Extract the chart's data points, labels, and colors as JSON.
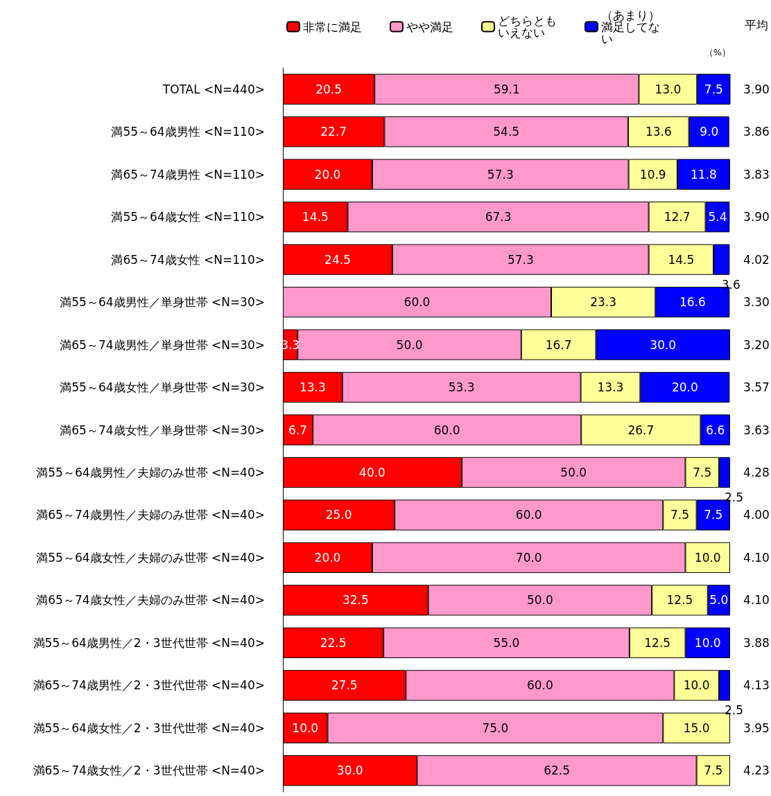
{
  "chart_data": {
    "type": "bar",
    "orientation": "horizontal",
    "stacked": true,
    "categories": [
      "TOTAL <N=440>",
      "満55～64歳男性 <N=110>",
      "満65～74歳男性 <N=110>",
      "満55～64歳女性 <N=110>",
      "満65～74歳女性 <N=110>",
      "満55～64歳男性／単身世帯 <N=30>",
      "満65～74歳男性／単身世帯 <N=30>",
      "満55～64歳女性／単身世帯 <N=30>",
      "満65～74歳女性／単身世帯 <N=30>",
      "満55～64歳男性／夫婦のみ世帯 <N=40>",
      "満65～74歳男性／夫婦のみ世帯 <N=40>",
      "満55～64歳女性／夫婦のみ世帯 <N=40>",
      "満65～74歳女性／夫婦のみ世帯 <N=40>",
      "満55～64歳男性／2・3世代世帯 <N=40>",
      "満65～74歳男性／2・3世代世帯 <N=40>",
      "満55～64歳女性／2・3世代世帯 <N=40>",
      "満65～74歳女性／2・3世代世帯 <N=40>"
    ],
    "series": [
      {
        "name": "非常に満足",
        "color": "#ff0000",
        "values": [
          20.5,
          22.7,
          20.0,
          14.5,
          24.5,
          null,
          3.3,
          13.3,
          6.7,
          40.0,
          25.0,
          20.0,
          32.5,
          22.5,
          27.5,
          10.0,
          30.0
        ],
        "value_labels": [
          "20.5",
          "22.7",
          "20.0",
          "14.5",
          "24.5",
          null,
          "3.3",
          "13.3",
          "6.7",
          "40.0",
          "25.0",
          "20.0",
          "32.5",
          "22.5",
          "27.5",
          "10.0",
          "30.0"
        ]
      },
      {
        "name": "やや満足",
        "color": "#ff99cc",
        "values": [
          59.1,
          54.5,
          57.3,
          67.3,
          57.3,
          60.0,
          50.0,
          53.3,
          60.0,
          50.0,
          60.0,
          70.0,
          50.0,
          55.0,
          60.0,
          75.0,
          62.5
        ],
        "value_labels": [
          "59.1",
          "54.5",
          "57.3",
          "67.3",
          "57.3",
          "60.0",
          "50.0",
          "53.3",
          "60.0",
          "50.0",
          "60.0",
          "70.0",
          "50.0",
          "55.0",
          "60.0",
          "75.0",
          "62.5"
        ]
      },
      {
        "name": "どちらともいえない",
        "color": "#ffff99",
        "values": [
          13.0,
          13.6,
          10.9,
          12.7,
          14.5,
          23.3,
          16.7,
          13.3,
          26.7,
          7.5,
          7.5,
          10.0,
          12.5,
          12.5,
          10.0,
          15.0,
          7.5
        ],
        "value_labels": [
          "13.0",
          "13.6",
          "10.9",
          "12.7",
          "14.5",
          "23.3",
          "16.7",
          "13.3",
          "26.7",
          "7.5",
          "7.5",
          "10.0",
          "12.5",
          "12.5",
          "10.0",
          "15.0",
          "7.5"
        ]
      },
      {
        "name": "（あまり）満足してない",
        "color": "#0000ff",
        "values": [
          7.5,
          9.0,
          11.8,
          5.4,
          3.6,
          16.6,
          30.0,
          20.0,
          6.6,
          2.5,
          7.5,
          null,
          5.0,
          10.0,
          2.5,
          null,
          null
        ],
        "value_labels": [
          "7.5",
          "9.0",
          "11.8",
          "5.4",
          "3.6",
          "16.6",
          "30.0",
          "20.0",
          "6.6",
          "2.5",
          "7.5",
          null,
          "5.0",
          "10.0",
          "2.5",
          null,
          null
        ]
      }
    ],
    "xlim": [
      0,
      100
    ],
    "tick_labels": "y",
    "legend": "top",
    "annotations": [
      "平均",
      "（%）",
      "3.90",
      "3.86",
      "3.83",
      "3.90",
      "4.02",
      "3.30",
      "3.20",
      "3.57",
      "3.63",
      "4.28",
      "4.00",
      "4.10",
      "4.10",
      "3.88",
      "4.13",
      "3.95",
      "4.23"
    ]
  }
}
